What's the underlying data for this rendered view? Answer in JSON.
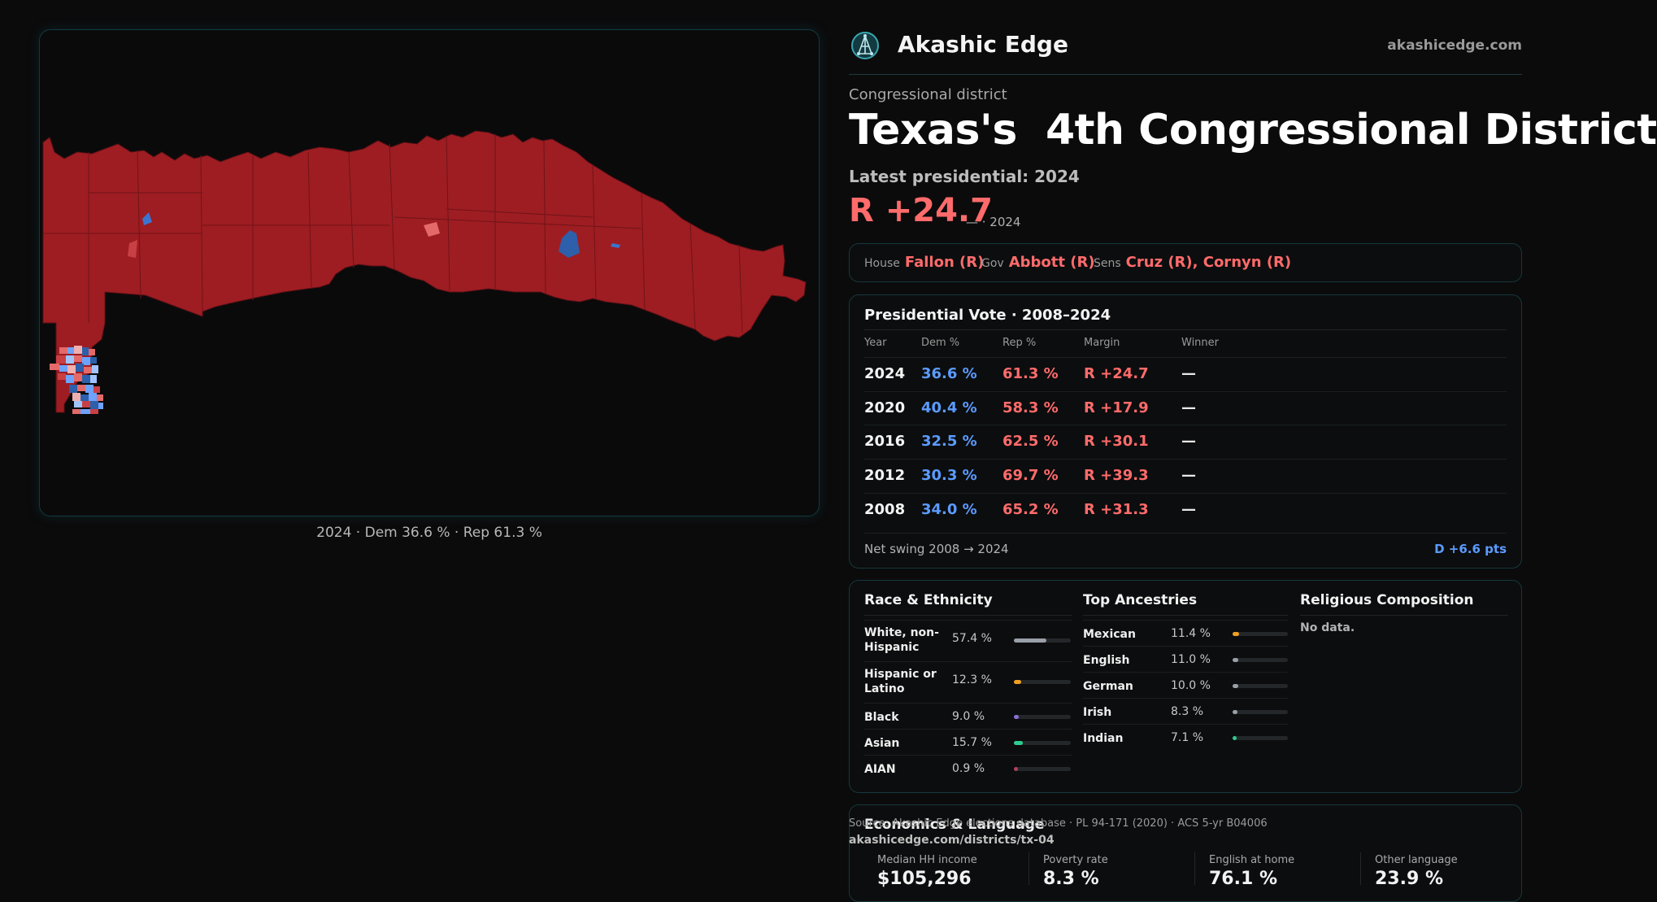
{
  "brand": {
    "name": "Akashic Edge",
    "url": "akashicedge.com",
    "logo_icon": "network-globe-icon"
  },
  "map": {
    "caption": "2024 · Dem 36.6 % · Rep 61.3 %",
    "colors": {
      "rep_strong": "#9e1d22",
      "rep_light": "#e46a6a",
      "dem_strong": "#2d5faa",
      "dem_light": "#6ea2ff",
      "outline": "#5e1115"
    }
  },
  "header": {
    "kicker": "Congressional district",
    "title": "Texas's  4th Congressional District",
    "latest": "Latest presidential: 2024",
    "margin": "R +24.7",
    "margin_sub": "— · 2024"
  },
  "officials": {
    "house_label": "House",
    "house": "Fallon (R)",
    "gov_label": "Gov",
    "gov": "Abbott (R)",
    "sens_label": "Sens",
    "sens": "Cruz (R), Cornyn (R)"
  },
  "presidential": {
    "title": "Presidential Vote · 2008–2024",
    "columns": [
      "Year",
      "Dem %",
      "Rep %",
      "Margin",
      "Winner"
    ],
    "rows": [
      {
        "year": "2024",
        "dem": "36.6 %",
        "rep": "61.3 %",
        "margin": "R +24.7",
        "winner": "—"
      },
      {
        "year": "2020",
        "dem": "40.4 %",
        "rep": "58.3 %",
        "margin": "R +17.9",
        "winner": "—"
      },
      {
        "year": "2016",
        "dem": "32.5 %",
        "rep": "62.5 %",
        "margin": "R +30.1",
        "winner": "—"
      },
      {
        "year": "2012",
        "dem": "30.3 %",
        "rep": "69.7 %",
        "margin": "R +39.3",
        "winner": "—"
      },
      {
        "year": "2008",
        "dem": "34.0 %",
        "rep": "65.2 %",
        "margin": "R +31.3",
        "winner": "—"
      }
    ],
    "swing_label": "Net swing 2008 → 2024",
    "swing_value": "D +6.6 pts"
  },
  "demographics": {
    "race_title": "Race & Ethnicity",
    "race": [
      {
        "label": "White, non-Hispanic",
        "pct": "57.4 %",
        "value": 57.4,
        "color": "#9aa0a8"
      },
      {
        "label": "Hispanic or Latino",
        "pct": "12.3 %",
        "value": 12.3,
        "color": "#f0a020"
      },
      {
        "label": "Black",
        "pct": "9.0 %",
        "value": 9.0,
        "color": "#8a6fd8"
      },
      {
        "label": "Asian",
        "pct": "15.7 %",
        "value": 15.7,
        "color": "#2ecc8f"
      },
      {
        "label": "AIAN",
        "pct": "0.9 %",
        "value": 0.9,
        "color": "#b04060"
      }
    ],
    "ancestry_title": "Top Ancestries",
    "ancestry": [
      {
        "label": "Mexican",
        "pct": "11.4 %",
        "value": 11.4,
        "color": "#f0a020"
      },
      {
        "label": "English",
        "pct": "11.0 %",
        "value": 11.0,
        "color": "#9aa0a8"
      },
      {
        "label": "German",
        "pct": "10.0 %",
        "value": 10.0,
        "color": "#9aa0a8"
      },
      {
        "label": "Irish",
        "pct": "8.3 %",
        "value": 8.3,
        "color": "#9aa0a8"
      },
      {
        "label": "Indian",
        "pct": "7.1 %",
        "value": 7.1,
        "color": "#2ecc8f"
      }
    ],
    "religion_title": "Religious Composition",
    "religion_empty": "No data."
  },
  "economics": {
    "title": "Economics & Language",
    "cols": [
      {
        "label": "Median HH income",
        "value": "$105,296"
      },
      {
        "label": "Poverty rate",
        "value": "8.3 %"
      },
      {
        "label": "English at home",
        "value": "76.1 %"
      },
      {
        "label": "Other language",
        "value": "23.9 %"
      }
    ]
  },
  "footer": {
    "source": "Source: Akashic Edge elections database · PL 94-171 (2020) · ACS 5-yr B04006",
    "url": "akashicedge.com/districts/tx-04"
  }
}
